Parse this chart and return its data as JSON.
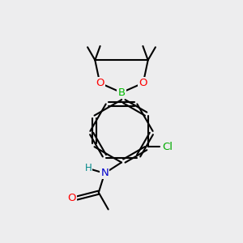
{
  "bg_color": "#ededee",
  "bond_color": "#000000",
  "bond_width": 1.5,
  "atom_colors": {
    "O": "#ff0000",
    "B": "#00bb00",
    "N": "#0000cc",
    "H": "#008888",
    "Cl": "#00aa00",
    "C": "#000000"
  },
  "font_size": 8.5
}
